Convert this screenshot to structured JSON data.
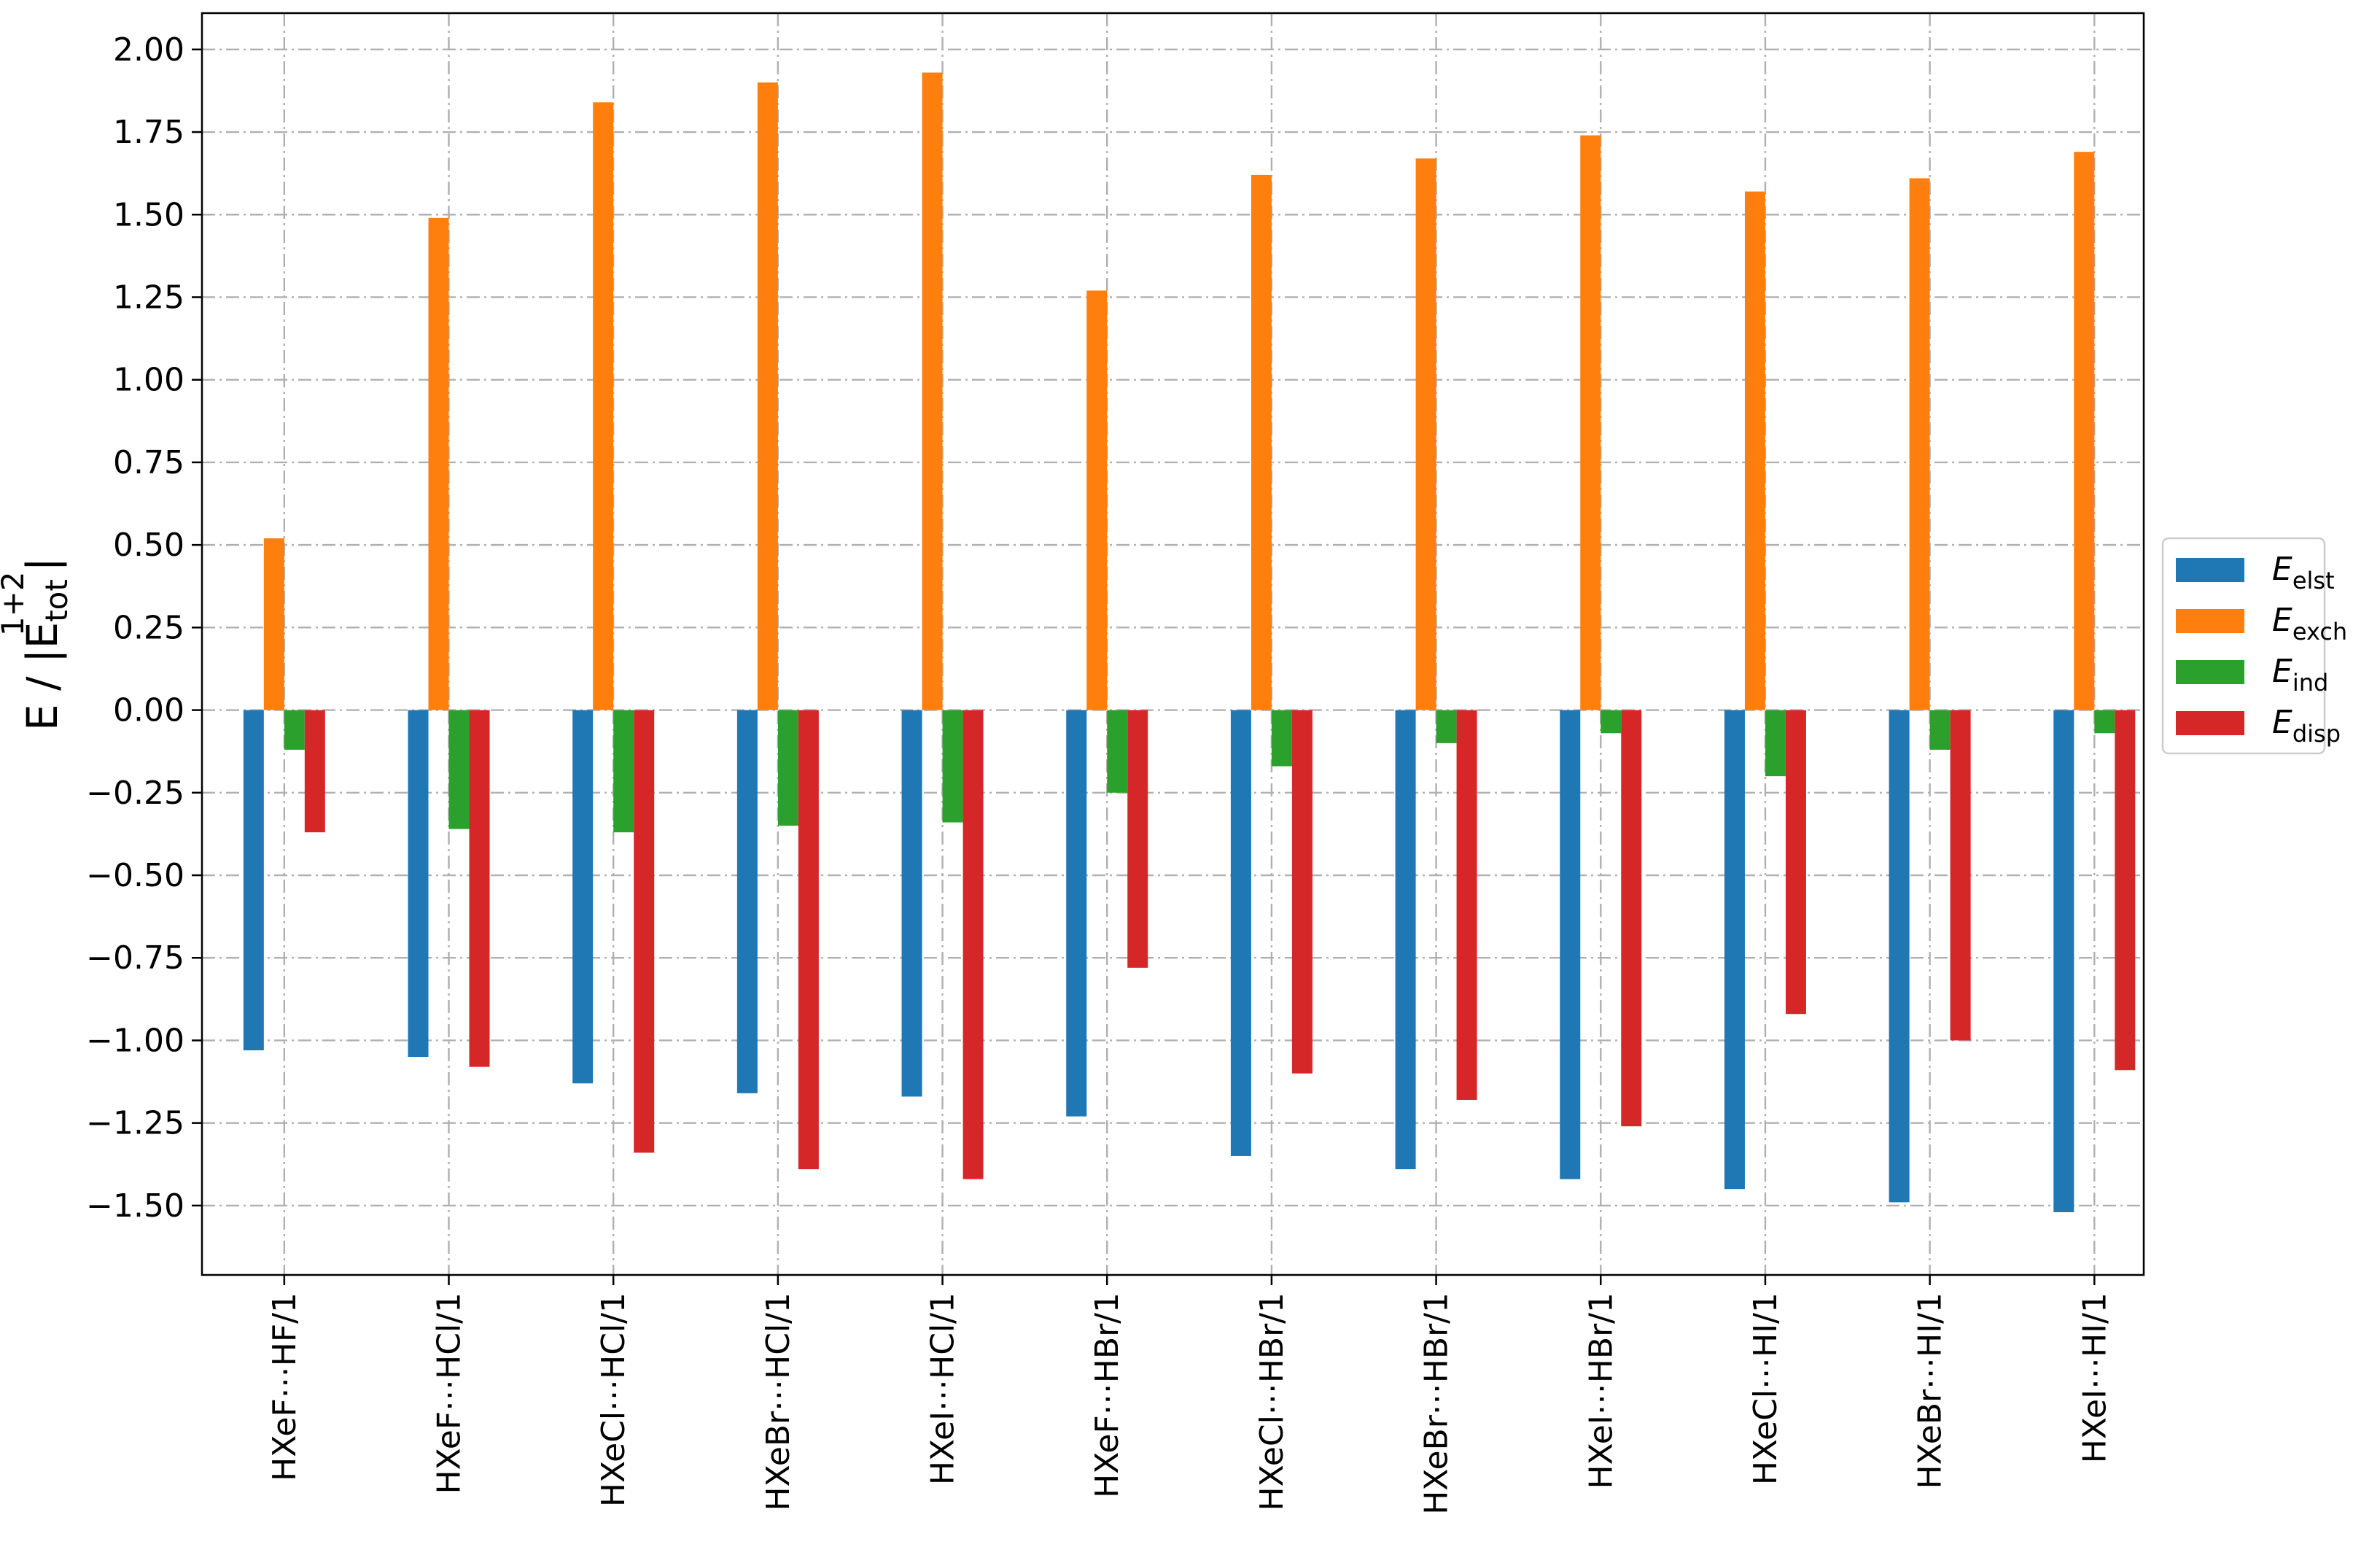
{
  "chart_data": {
    "type": "bar",
    "title": "",
    "xlabel": "",
    "ylabel": {
      "main": "E / |E",
      "sub": "tot",
      "sup": "1+2",
      "close": "|"
    },
    "ylim": [
      -1.71,
      2.11
    ],
    "yticks": [
      "2.00",
      "1.75",
      "1.50",
      "1.25",
      "1.00",
      "0.75",
      "0.50",
      "0.25",
      "0.00",
      "−0.25",
      "−0.50",
      "−0.75",
      "−1.00",
      "−1.25",
      "−1.50"
    ],
    "ytick_values": [
      2.0,
      1.75,
      1.5,
      1.25,
      1.0,
      0.75,
      0.5,
      0.25,
      0.0,
      -0.25,
      -0.5,
      -0.75,
      -1.0,
      -1.25,
      -1.5
    ],
    "grid": true,
    "legend_position": "center-right outside",
    "categories": [
      "HXeF⋯HF/1",
      "HXeF⋯HCl/1",
      "HXeCl⋯HCl/1",
      "HXeBr⋯HCl/1",
      "HXeI⋯HCl/1",
      "HXeF⋯HBr/1",
      "HXeCl⋯HBr/1",
      "HXeBr⋯HBr/1",
      "HXeI⋯HBr/1",
      "HXeCl⋯HI/1",
      "HXeBr⋯HI/1",
      "HXeI⋯HI/1"
    ],
    "series": [
      {
        "name": "E",
        "sub": "elst",
        "color": "#1f77b4",
        "values": [
          -1.03,
          -1.05,
          -1.13,
          -1.16,
          -1.17,
          -1.23,
          -1.35,
          -1.39,
          -1.42,
          -1.45,
          -1.49,
          -1.52
        ]
      },
      {
        "name": "E",
        "sub": "exch",
        "color": "#ff7f0e",
        "values": [
          0.52,
          1.49,
          1.84,
          1.9,
          1.93,
          1.27,
          1.62,
          1.67,
          1.74,
          1.57,
          1.61,
          1.69
        ]
      },
      {
        "name": "E",
        "sub": "ind",
        "color": "#2ca02c",
        "values": [
          -0.12,
          -0.36,
          -0.37,
          -0.35,
          -0.34,
          -0.25,
          -0.17,
          -0.1,
          -0.07,
          -0.2,
          -0.12,
          -0.07
        ]
      },
      {
        "name": "E",
        "sub": "disp",
        "color": "#d62728",
        "values": [
          -0.37,
          -1.08,
          -1.34,
          -1.39,
          -1.42,
          -0.78,
          -1.1,
          -1.18,
          -1.26,
          -0.92,
          -1.0,
          -1.09
        ]
      }
    ]
  }
}
